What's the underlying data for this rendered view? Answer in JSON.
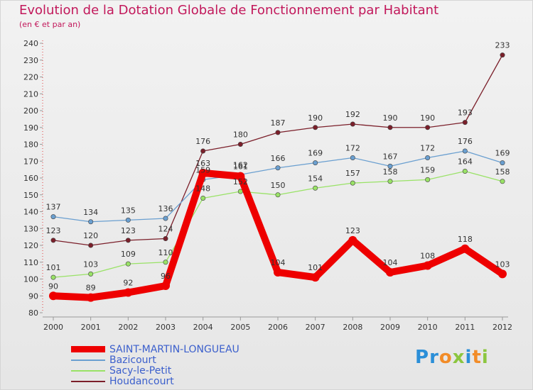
{
  "header": {
    "title": "Evolution de la Dotation Globale de Fonctionnement par Habitant",
    "subtitle": "(en € et par an)"
  },
  "logo": {
    "text": "Proxiti"
  },
  "chart_data": {
    "type": "line",
    "title": "Evolution de la Dotation Globale de Fonctionnement par Habitant",
    "subtitle": "(en € et par an)",
    "xlabel": "",
    "ylabel": "",
    "x": [
      "2000",
      "2001",
      "2002",
      "2003",
      "2004",
      "2005",
      "2006",
      "2007",
      "2008",
      "2009",
      "2010",
      "2011",
      "2012"
    ],
    "ylim": [
      80,
      240
    ],
    "yticks": [
      80,
      90,
      100,
      110,
      120,
      130,
      140,
      150,
      160,
      170,
      180,
      190,
      200,
      210,
      220,
      230,
      240
    ],
    "grid": false,
    "legend_position": "bottom-left",
    "series": [
      {
        "name": "SAINT-MARTIN-LONGUEAU",
        "color": "#ee0000",
        "values": [
          90,
          89,
          92,
          96,
          163,
          161,
          104,
          101,
          123,
          104,
          108,
          118,
          103
        ],
        "labels": [
          "90",
          "89",
          "92",
          "96",
          "163",
          "161",
          "104",
          "101",
          "123",
          "104",
          "108",
          "118",
          "103"
        ]
      },
      {
        "name": "Bazicourt",
        "color": "#6a9fd0",
        "values": [
          137,
          134,
          135,
          136,
          159,
          162,
          166,
          169,
          172,
          167,
          172,
          176,
          169
        ],
        "labels": [
          "137",
          "134",
          "135",
          "136",
          "159",
          "162",
          "166",
          "169",
          "172",
          "167",
          "172",
          "176",
          "169"
        ]
      },
      {
        "name": "Sacy-le-Petit",
        "color": "#99e266",
        "values": [
          101,
          103,
          109,
          110,
          148,
          152,
          150,
          154,
          157,
          158,
          159,
          164,
          158
        ],
        "labels": [
          "101",
          "103",
          "109",
          "110",
          "148",
          "152",
          "150",
          "154",
          "157",
          "158",
          "159",
          "164",
          "158"
        ]
      },
      {
        "name": "Houdancourt",
        "color": "#7b1f2a",
        "values": [
          123,
          120,
          123,
          124,
          176,
          180,
          187,
          190,
          192,
          190,
          190,
          193,
          233
        ],
        "labels": [
          "123",
          "120",
          "123",
          "124",
          "176",
          "180",
          "187",
          "190",
          "192",
          "190",
          "190",
          "193",
          "233"
        ]
      }
    ]
  }
}
